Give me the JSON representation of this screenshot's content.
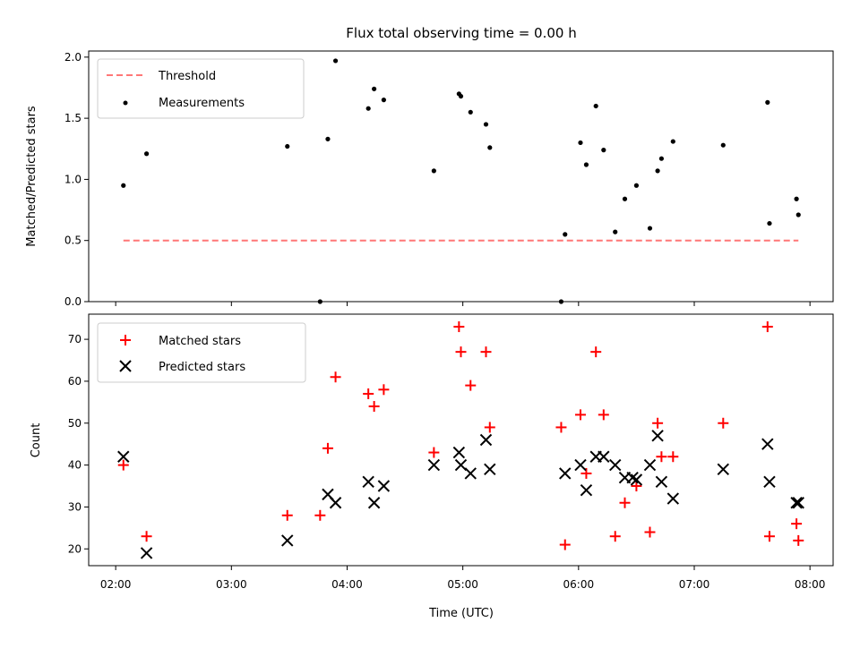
{
  "chart_data": {
    "title": "Flux total observing time = 0.00 h",
    "xlabel": "Time (UTC)",
    "xticks": [
      "02:00",
      "03:00",
      "04:00",
      "05:00",
      "06:00",
      "07:00",
      "08:00"
    ],
    "xlim": [
      "01:46",
      "08:12"
    ],
    "panels": [
      {
        "type": "scatter",
        "ylabel": "Matched/Predicted stars",
        "ylim": [
          0,
          2.05
        ],
        "yticks": [
          "0.0",
          "0.5",
          "1.0",
          "1.5",
          "2.0"
        ],
        "legend": {
          "placement": "top-left",
          "entries": [
            "Threshold",
            "Measurements"
          ]
        },
        "threshold": {
          "name": "Threshold",
          "y": 0.5,
          "x_start": "02:04",
          "x_end": "07:54",
          "color": "#ff7777"
        },
        "series": [
          {
            "name": "Measurements",
            "marker": "dot",
            "color": "#000000",
            "points": [
              [
                "02:04",
                0.95
              ],
              [
                "02:16",
                1.21
              ],
              [
                "03:29",
                1.27
              ],
              [
                "03:46",
                0.0
              ],
              [
                "03:50",
                1.33
              ],
              [
                "03:54",
                1.97
              ],
              [
                "04:11",
                1.58
              ],
              [
                "04:14",
                1.74
              ],
              [
                "04:19",
                1.65
              ],
              [
                "04:45",
                1.07
              ],
              [
                "04:58",
                1.7
              ],
              [
                "04:59",
                1.68
              ],
              [
                "05:04",
                1.55
              ],
              [
                "05:12",
                1.45
              ],
              [
                "05:14",
                1.26
              ],
              [
                "05:51",
                0.0
              ],
              [
                "05:53",
                0.55
              ],
              [
                "06:01",
                1.3
              ],
              [
                "06:04",
                1.12
              ],
              [
                "06:09",
                1.6
              ],
              [
                "06:13",
                1.24
              ],
              [
                "06:19",
                0.57
              ],
              [
                "06:24",
                0.84
              ],
              [
                "06:30",
                0.95
              ],
              [
                "06:37",
                0.6
              ],
              [
                "06:41",
                1.07
              ],
              [
                "06:43",
                1.17
              ],
              [
                "06:49",
                1.31
              ],
              [
                "07:15",
                1.28
              ],
              [
                "07:38",
                1.63
              ],
              [
                "07:39",
                0.64
              ],
              [
                "07:53",
                0.84
              ],
              [
                "07:54",
                0.71
              ]
            ]
          }
        ]
      },
      {
        "type": "scatter",
        "ylabel": "Count",
        "ylim": [
          16,
          76
        ],
        "yticks": [
          "20",
          "30",
          "40",
          "50",
          "60",
          "70"
        ],
        "legend": {
          "placement": "top-left",
          "entries": [
            "Matched stars",
            "Predicted stars"
          ]
        },
        "series": [
          {
            "name": "Matched stars",
            "marker": "plus",
            "color": "#ff0000",
            "points": [
              [
                "02:04",
                40
              ],
              [
                "02:16",
                23
              ],
              [
                "03:29",
                28
              ],
              [
                "03:46",
                28
              ],
              [
                "03:50",
                44
              ],
              [
                "03:54",
                61
              ],
              [
                "04:11",
                57
              ],
              [
                "04:14",
                54
              ],
              [
                "04:19",
                58
              ],
              [
                "04:45",
                43
              ],
              [
                "04:58",
                73
              ],
              [
                "04:59",
                67
              ],
              [
                "05:04",
                59
              ],
              [
                "05:12",
                67
              ],
              [
                "05:14",
                49
              ],
              [
                "05:51",
                49
              ],
              [
                "05:53",
                21
              ],
              [
                "06:01",
                52
              ],
              [
                "06:04",
                38
              ],
              [
                "06:09",
                67
              ],
              [
                "06:13",
                52
              ],
              [
                "06:19",
                23
              ],
              [
                "06:24",
                31
              ],
              [
                "06:30",
                35
              ],
              [
                "06:37",
                24
              ],
              [
                "06:41",
                50
              ],
              [
                "06:43",
                42
              ],
              [
                "06:49",
                42
              ],
              [
                "07:15",
                50
              ],
              [
                "07:38",
                73
              ],
              [
                "07:39",
                23
              ],
              [
                "07:53",
                26
              ],
              [
                "07:54",
                22
              ]
            ]
          },
          {
            "name": "Predicted stars",
            "marker": "x",
            "color": "#000000",
            "points": [
              [
                "02:04",
                42
              ],
              [
                "02:16",
                19
              ],
              [
                "03:29",
                22
              ],
              [
                "03:50",
                33
              ],
              [
                "03:54",
                31
              ],
              [
                "04:11",
                36
              ],
              [
                "04:14",
                31
              ],
              [
                "04:19",
                35
              ],
              [
                "04:45",
                40
              ],
              [
                "04:58",
                43
              ],
              [
                "04:59",
                40
              ],
              [
                "05:04",
                38
              ],
              [
                "05:12",
                46
              ],
              [
                "05:14",
                39
              ],
              [
                "05:53",
                38
              ],
              [
                "06:01",
                40
              ],
              [
                "06:04",
                34
              ],
              [
                "06:09",
                42
              ],
              [
                "06:13",
                42
              ],
              [
                "06:19",
                40
              ],
              [
                "06:24",
                37
              ],
              [
                "06:28",
                37
              ],
              [
                "06:30",
                36.5
              ],
              [
                "06:37",
                40
              ],
              [
                "06:41",
                47
              ],
              [
                "06:43",
                36
              ],
              [
                "06:49",
                32
              ],
              [
                "07:15",
                39
              ],
              [
                "07:38",
                45
              ],
              [
                "07:39",
                36
              ],
              [
                "07:53",
                31
              ],
              [
                "07:54",
                31
              ]
            ]
          }
        ]
      }
    ]
  }
}
